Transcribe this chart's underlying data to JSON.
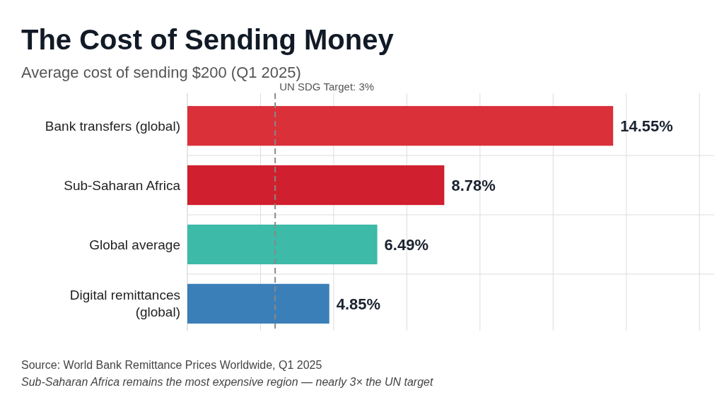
{
  "chart_data": {
    "type": "bar",
    "orientation": "horizontal",
    "title": "The Cost of Sending Money",
    "subtitle": "Average cost of sending $200 (Q1 2025)",
    "categories": [
      "Bank transfers (global)",
      "Sub-Saharan Africa",
      "Global average",
      "Digital remittances (global)"
    ],
    "values": [
      14.55,
      8.78,
      6.49,
      4.85
    ],
    "value_labels": [
      "14.55%",
      "8.78%",
      "6.49%",
      "4.85%"
    ],
    "colors": [
      "#d9303a",
      "#d01f2e",
      "#3dbaa8",
      "#3a7fb8"
    ],
    "xlim": [
      0,
      18
    ],
    "xticks": [
      {
        "value": 2.5,
        "label": null
      },
      {
        "value": 5,
        "label": null
      },
      {
        "value": 7.5,
        "label": null
      },
      {
        "value": 10,
        "label": null
      },
      {
        "value": 12.5,
        "label": null
      },
      {
        "value": 15,
        "label": null
      },
      {
        "value": 17.5,
        "label": null
      }
    ],
    "tick_labels": "y",
    "grid": true,
    "ref_lines": [
      {
        "axis": "x",
        "value": 3,
        "label": "UN SDG Target: 3%",
        "color": "#888888",
        "line_style": "dashed"
      }
    ],
    "annotations": [
      "Source: World Bank Remittance Prices Worldwide, Q1 2025",
      "Sub-Saharan Africa remains the most expensive region — nearly 3× the UN target"
    ]
  }
}
